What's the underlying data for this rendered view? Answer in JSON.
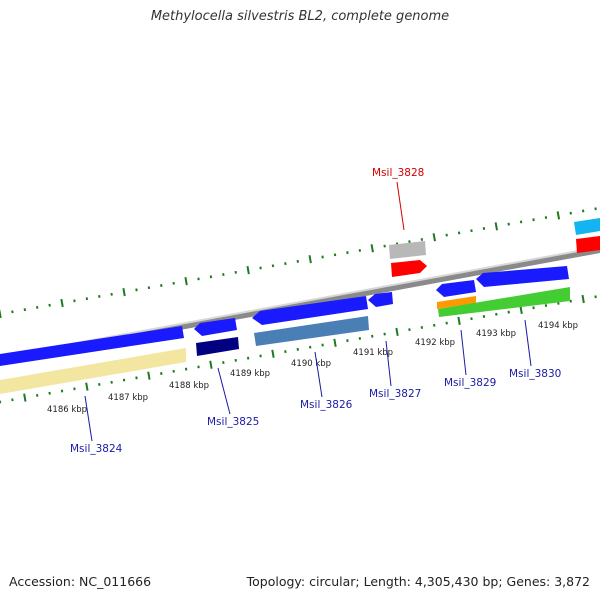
{
  "title": "Methylocella silvestris BL2, complete genome",
  "footer": {
    "accession": "Accession: NC_011666",
    "summary": "Topology: circular; Length: 4,305,430 bp; Genes: 3,872"
  },
  "colors": {
    "backbone": "#8a8a8a",
    "tick": "#1f7a1f",
    "forward_gene": "#1a1aff",
    "reverse_gene_dark": "#000080",
    "cds_yellow": "#f2e6a0",
    "cds_steel": "#4a7fb5",
    "highlight_label": "#d40000",
    "label": "#1a1aa6",
    "gray": "#b8b8b8",
    "red": "#ff0000",
    "green": "#44cc33",
    "orange": "#ff9900",
    "cyan": "#14b4f0"
  },
  "scale_labels": [
    "4186 kbp",
    "4187 kbp",
    "4188 kbp",
    "4189 kbp",
    "4190 kbp",
    "4191 kbp",
    "4192 kbp",
    "4193 kbp",
    "4194 kbp"
  ],
  "genes": [
    {
      "label": "Msil_3824",
      "highlight": false
    },
    {
      "label": "Msil_3825",
      "highlight": false
    },
    {
      "label": "Msil_3826",
      "highlight": false
    },
    {
      "label": "Msil_3827",
      "highlight": false
    },
    {
      "label": "Msil_3828",
      "highlight": true
    },
    {
      "label": "Msil_3829",
      "highlight": false
    },
    {
      "label": "Msil_3830",
      "highlight": false
    }
  ]
}
